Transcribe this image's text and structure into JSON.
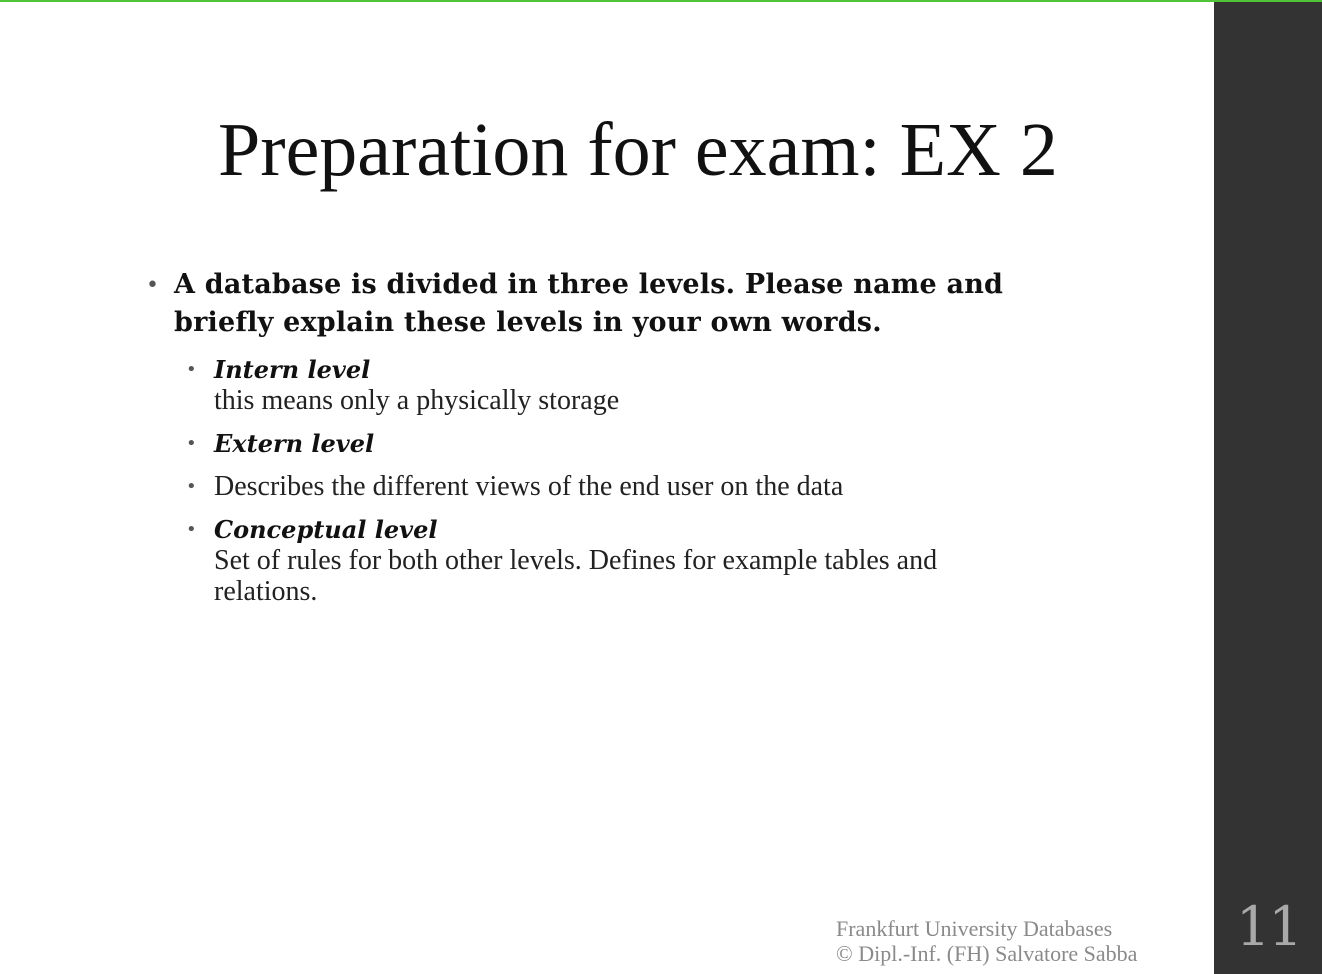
{
  "slide": {
    "title": "Preparation for exam: EX 2",
    "question": "A database is divided in three levels. Please name and briefly explain these levels in your own words.",
    "items": [
      {
        "heading": "Intern level",
        "body": "this means only a physically storage"
      },
      {
        "heading": "Extern level",
        "body": ""
      },
      {
        "heading": "",
        "body": "Describes the different views of the end user on the data"
      },
      {
        "heading": "Conceptual level",
        "body": "Set of rules for both other levels. Defines for example tables and relations."
      }
    ],
    "bullet_glyph": "•",
    "page_number": "11"
  },
  "footer": {
    "line1": "Frankfurt University Databases",
    "line2": "© Dipl.-Inf. (FH) Salvatore Sabba"
  },
  "colors": {
    "accent_top_line": "#4fc437",
    "sidebar": "#333333",
    "page_number": "#a9a9a9",
    "footer_text": "#8a8a8a"
  }
}
